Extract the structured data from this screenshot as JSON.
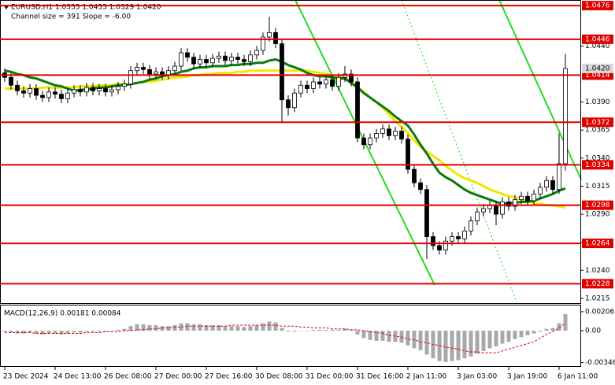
{
  "chart_data": {
    "type": "candlestick",
    "title": "EURUSD,H1  1.0335 1.0433 1.0329 1.0420",
    "subtitle": "Channel size = 391 Slope = -6.00",
    "categories": [
      "23 Dec 2024",
      null,
      null,
      null,
      null,
      null,
      null,
      null,
      "24 Dec 13:00",
      null,
      null,
      null,
      null,
      null,
      null,
      null,
      "26 Dec 08:00",
      null,
      null,
      null,
      null,
      null,
      null,
      null,
      "27 Dec 00:00",
      null,
      null,
      null,
      null,
      null,
      null,
      null,
      "27 Dec 16:00",
      null,
      null,
      null,
      null,
      null,
      null,
      null,
      "30 Dec 08:00",
      null,
      null,
      null,
      null,
      null,
      null,
      null,
      "31 Dec 00:00",
      null,
      null,
      null,
      null,
      null,
      null,
      null,
      "31 Dec 16:00",
      null,
      null,
      null,
      null,
      null,
      null,
      null,
      "2 Jan 11:00",
      null,
      null,
      null,
      null,
      null,
      null,
      null,
      "3 Jan 03:00",
      null,
      null,
      null,
      null,
      null,
      null,
      null,
      "3 Jan 19:00",
      null,
      null,
      null,
      null,
      null,
      null,
      null,
      "6 Jan 11:00",
      null
    ],
    "open": [
      1.0416,
      1.0412,
      1.0405,
      1.04,
      1.0398,
      1.0402,
      1.0396,
      1.0394,
      1.0399,
      1.0397,
      1.0393,
      1.0398,
      1.0401,
      1.0399,
      1.0403,
      1.04,
      1.0402,
      1.0399,
      1.0401,
      1.0404,
      1.0406,
      1.0418,
      1.0421,
      1.0419,
      1.0415,
      1.0417,
      1.0414,
      1.0418,
      1.0422,
      1.0434,
      1.043,
      1.0424,
      1.0428,
      1.0425,
      1.0429,
      1.0431,
      1.0427,
      1.043,
      1.0428,
      1.0426,
      1.0432,
      1.0436,
      1.0448,
      1.0452,
      1.0442,
      1.0392,
      1.0385,
      1.0398,
      1.0405,
      1.0402,
      1.0408,
      1.0406,
      1.041,
      1.0404,
      1.0412,
      1.0415,
      1.0408,
      1.0358,
      1.0352,
      1.0358,
      1.0362,
      1.0366,
      1.036,
      1.0364,
      1.0357,
      1.033,
      1.0318,
      1.0312,
      1.027,
      1.0262,
      1.0258,
      1.0266,
      1.027,
      1.0268,
      1.0275,
      1.0284,
      1.0292,
      1.0295,
      1.0298,
      1.029,
      1.0301,
      1.0297,
      1.0303,
      1.0306,
      1.0302,
      1.0308,
      1.0314,
      1.032,
      1.0312,
      1.0335
    ],
    "high": [
      1.042,
      1.0416,
      1.0409,
      1.0404,
      1.0406,
      1.0406,
      1.04,
      1.0403,
      1.0403,
      1.0401,
      1.0402,
      1.0405,
      1.0405,
      1.0407,
      1.0407,
      1.0406,
      1.0406,
      1.0405,
      1.0408,
      1.041,
      1.0422,
      1.0425,
      1.0425,
      1.0423,
      1.0421,
      1.0421,
      1.0422,
      1.0426,
      1.0438,
      1.0438,
      1.0434,
      1.0432,
      1.0432,
      1.0433,
      1.0435,
      1.0435,
      1.0434,
      1.0434,
      1.0432,
      1.0436,
      1.044,
      1.0452,
      1.0466,
      1.0456,
      1.0446,
      1.0396,
      1.0402,
      1.0409,
      1.0409,
      1.0412,
      1.0412,
      1.0414,
      1.0414,
      1.0416,
      1.0422,
      1.0419,
      1.0412,
      1.0362,
      1.0362,
      1.0366,
      1.037,
      1.037,
      1.0368,
      1.0368,
      1.0361,
      1.0334,
      1.0322,
      1.0316,
      1.0274,
      1.0266,
      1.027,
      1.0274,
      1.0274,
      1.0279,
      1.0288,
      1.0296,
      1.0299,
      1.0302,
      1.0302,
      1.0305,
      1.0305,
      1.0307,
      1.031,
      1.031,
      1.0312,
      1.0318,
      1.0324,
      1.0324,
      1.0362,
      1.0433
    ],
    "low": [
      1.0408,
      1.0401,
      1.0396,
      1.0394,
      1.0394,
      1.0392,
      1.039,
      1.039,
      1.0393,
      1.0389,
      1.0389,
      1.0394,
      1.0395,
      1.0395,
      1.0396,
      1.0396,
      1.0395,
      1.0395,
      1.0397,
      1.04,
      1.0402,
      1.0414,
      1.0415,
      1.0411,
      1.0411,
      1.041,
      1.041,
      1.0414,
      1.0418,
      1.0426,
      1.042,
      1.042,
      1.0421,
      1.0421,
      1.0425,
      1.0423,
      1.0423,
      1.0424,
      1.0422,
      1.0422,
      1.0428,
      1.0432,
      1.0444,
      1.0438,
      1.0372,
      1.0378,
      1.0381,
      1.0394,
      1.0398,
      1.0398,
      1.0402,
      1.0402,
      1.04,
      1.04,
      1.0408,
      1.0404,
      1.0354,
      1.0348,
      1.0348,
      1.0354,
      1.0358,
      1.0356,
      1.0356,
      1.0353,
      1.0326,
      1.0314,
      1.0308,
      1.025,
      1.0258,
      1.0254,
      1.0254,
      1.0262,
      1.0264,
      1.0264,
      1.0271,
      1.028,
      1.0288,
      1.0291,
      1.028,
      1.0286,
      1.0293,
      1.0293,
      1.0299,
      1.0298,
      1.0298,
      1.0304,
      1.031,
      1.0308,
      1.0308,
      1.0329
    ],
    "close": [
      1.0412,
      1.0405,
      1.04,
      1.0398,
      1.0402,
      1.0396,
      1.0394,
      1.0399,
      1.0397,
      1.0393,
      1.0398,
      1.0401,
      1.0399,
      1.0403,
      1.04,
      1.0402,
      1.0399,
      1.0401,
      1.0404,
      1.0406,
      1.0418,
      1.0421,
      1.0419,
      1.0415,
      1.0417,
      1.0414,
      1.0418,
      1.0422,
      1.0434,
      1.043,
      1.0424,
      1.0428,
      1.0425,
      1.0429,
      1.0431,
      1.0427,
      1.043,
      1.0428,
      1.0426,
      1.0432,
      1.0436,
      1.0448,
      1.0452,
      1.0442,
      1.0392,
      1.0385,
      1.0398,
      1.0405,
      1.0402,
      1.0408,
      1.0406,
      1.041,
      1.0404,
      1.0412,
      1.0415,
      1.0408,
      1.0358,
      1.0352,
      1.0358,
      1.0362,
      1.0366,
      1.036,
      1.0364,
      1.0357,
      1.033,
      1.0318,
      1.0312,
      1.027,
      1.0262,
      1.0258,
      1.0266,
      1.027,
      1.0268,
      1.0275,
      1.0284,
      1.0292,
      1.0295,
      1.0298,
      1.029,
      1.0301,
      1.0297,
      1.0303,
      1.0306,
      1.0302,
      1.0308,
      1.0314,
      1.032,
      1.0312,
      1.0335,
      1.042
    ],
    "lines": [
      {
        "color": "#f2e600",
        "values": [
          1.0402,
          1.0402,
          1.0402,
          1.0402,
          1.0402,
          1.0402,
          1.0403,
          1.0403,
          1.0403,
          1.0403,
          1.0403,
          1.0403,
          1.0404,
          1.0404,
          1.0404,
          1.0405,
          1.0405,
          1.0405,
          1.0406,
          1.0406,
          1.0406,
          1.0407,
          1.0408,
          1.0408,
          1.0409,
          1.041,
          1.0411,
          1.0412,
          1.0412,
          1.0413,
          1.0414,
          1.0414,
          1.0415,
          1.0415,
          1.0416,
          1.0416,
          1.0416,
          1.0417,
          1.0417,
          1.0418,
          1.0418,
          1.0418,
          1.0418,
          1.0418,
          1.0418,
          1.0418,
          1.0418,
          1.0418,
          1.0418,
          1.0417,
          1.0416,
          1.0415,
          1.0414,
          1.0413,
          1.0412,
          1.0408,
          1.0403,
          1.0399,
          1.0394,
          1.039,
          1.0385,
          1.0379,
          1.0373,
          1.0368,
          1.0362,
          1.0356,
          1.035,
          1.0346,
          1.0342,
          1.0338,
          1.0333,
          1.0329,
          1.0325,
          1.0322,
          1.032,
          1.0318,
          1.0315,
          1.0312,
          1.031,
          1.0308,
          1.0306,
          1.0305,
          1.0303,
          1.0302,
          1.03,
          1.0299,
          1.0298,
          1.0298,
          1.0297,
          1.0296
        ]
      },
      {
        "color": "#0a7a0a",
        "values": [
          1.0418,
          1.0417,
          1.0415,
          1.0414,
          1.0412,
          1.0411,
          1.0409,
          1.0407,
          1.0405,
          1.0404,
          1.0402,
          1.04,
          1.0401,
          1.0401,
          1.0402,
          1.0403,
          1.0403,
          1.0404,
          1.0405,
          1.0405,
          1.0406,
          1.0407,
          1.0408,
          1.041,
          1.0411,
          1.0413,
          1.0414,
          1.0415,
          1.0417,
          1.0418,
          1.042,
          1.0421,
          1.0421,
          1.0422,
          1.0422,
          1.0422,
          1.0423,
          1.0423,
          1.0424,
          1.0424,
          1.0425,
          1.0425,
          1.0427,
          1.0428,
          1.0426,
          1.0423,
          1.0421,
          1.0419,
          1.0416,
          1.0414,
          1.0413,
          1.0413,
          1.0412,
          1.0411,
          1.0411,
          1.0407,
          1.0403,
          1.0398,
          1.0394,
          1.039,
          1.0386,
          1.0382,
          1.0377,
          1.0373,
          1.0369,
          1.0361,
          1.0352,
          1.0344,
          1.0335,
          1.0327,
          1.0323,
          1.032,
          1.0316,
          1.0312,
          1.0309,
          1.0307,
          1.0305,
          1.0303,
          1.0301,
          1.0299,
          1.03,
          1.03,
          1.0301,
          1.0301,
          1.0302,
          1.0304,
          1.0306,
          1.0308,
          1.0311,
          1.0313
        ]
      }
    ],
    "levels": [
      1.0476,
      1.0446,
      1.0414,
      1.0372,
      1.0334,
      1.0298,
      1.0264,
      1.0228
    ],
    "level_color": "#e00000",
    "last_price": {
      "value": 1.042,
      "label": "1.0420"
    },
    "ylim": [
      1.021,
      1.0481
    ],
    "yticks": [
      {
        "value": 1.044,
        "label": "1.0440"
      },
      {
        "value": 1.039,
        "label": "1.0390"
      },
      1.0365,
      {
        "value": 1.034,
        "label": "1.0340"
      },
      1.0315,
      {
        "value": 1.029,
        "label": "1.0290"
      },
      1.0265,
      {
        "value": 1.024,
        "label": "1.0240"
      },
      1.0215
    ],
    "grid": false,
    "macd": {
      "label": "MACD(12,26,9) 0.00181 0.00084",
      "color": "#a8a8a8",
      "signal_color": "#e00000",
      "histogram": [
        -0.0001,
        -0.0002,
        -0.0003,
        -0.0003,
        -0.0002,
        -0.0003,
        -0.0004,
        -0.0003,
        -0.0003,
        -0.0004,
        -0.0003,
        -0.0002,
        -0.0002,
        -0.0001,
        -0.0001,
        -0.0001,
        -0.0001,
        0.0,
        0.0001,
        0.0002,
        0.0005,
        0.0007,
        0.0007,
        0.0006,
        0.0006,
        0.0005,
        0.0005,
        0.0006,
        0.0008,
        0.0008,
        0.0007,
        0.0007,
        0.0006,
        0.0006,
        0.0006,
        0.0005,
        0.0005,
        0.0005,
        0.0004,
        0.0005,
        0.0006,
        0.0008,
        0.001,
        0.0009,
        0.0003,
        -0.0001,
        -0.0001,
        0.0,
        0.0,
        0.0001,
        0.0001,
        0.0001,
        0.0001,
        0.0001,
        0.0002,
        0.0001,
        -0.0004,
        -0.0008,
        -0.001,
        -0.0011,
        -0.0011,
        -0.0012,
        -0.0012,
        -0.0013,
        -0.0016,
        -0.0019,
        -0.0021,
        -0.0026,
        -0.003,
        -0.0033,
        -0.0034,
        -0.0033,
        -0.0032,
        -0.003,
        -0.0028,
        -0.0025,
        -0.0022,
        -0.0019,
        -0.0017,
        -0.0014,
        -0.0012,
        -0.0009,
        -0.0007,
        -0.0005,
        -0.0003,
        -0.0001,
        0.0002,
        0.0003,
        0.0008,
        0.00181
      ],
      "signal": [
        -0.0002,
        -0.0002,
        -0.0002,
        -0.0002,
        -0.0002,
        -0.0003,
        -0.0003,
        -0.0003,
        -0.0003,
        -0.0003,
        -0.0003,
        -0.0003,
        -0.0003,
        -0.0002,
        -0.0002,
        -0.0002,
        -0.0001,
        -0.0001,
        -0.0001,
        0.0,
        0.0,
        0.0001,
        0.0001,
        0.0002,
        0.0002,
        0.0003,
        0.0003,
        0.0004,
        0.0004,
        0.0005,
        0.0005,
        0.0005,
        0.0005,
        0.0005,
        0.0005,
        0.0005,
        0.0006,
        0.0006,
        0.0006,
        0.0006,
        0.0006,
        0.0006,
        0.0006,
        0.0006,
        0.0005,
        0.0005,
        0.0005,
        0.0004,
        0.0004,
        0.0003,
        0.0003,
        0.0003,
        0.0002,
        0.0002,
        0.0002,
        0.0001,
        0.0001,
        0.0,
        -0.0001,
        -0.0002,
        -0.0003,
        -0.0005,
        -0.0006,
        -0.0007,
        -0.0009,
        -0.001,
        -0.0012,
        -0.0013,
        -0.0015,
        -0.0016,
        -0.0018,
        -0.0019,
        -0.002,
        -0.0022,
        -0.0023,
        -0.0023,
        -0.0024,
        -0.0024,
        -0.0024,
        -0.0022,
        -0.002,
        -0.0018,
        -0.0016,
        -0.0014,
        -0.0012,
        -0.0008,
        -0.0004,
        -0.0001,
        0.0003,
        0.00084
      ],
      "ylim": [
        -0.00393,
        0.00274
      ],
      "yticks": [
        0.00206,
        {
          "value": 0,
          "label": "0.00"
        },
        -0.00346
      ]
    }
  }
}
